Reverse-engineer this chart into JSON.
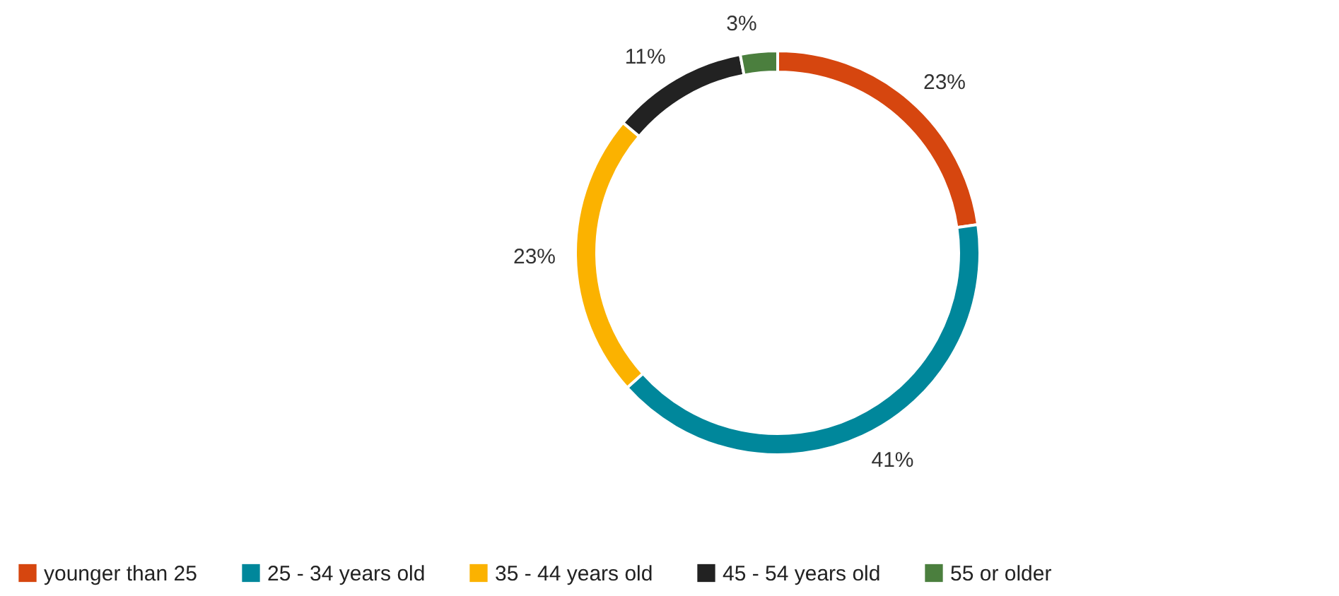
{
  "chart_data": {
    "type": "donut",
    "categories": [
      "younger than 25",
      "25 - 34 years old",
      "35 - 44 years old",
      "45 - 54 years old",
      "55 or older"
    ],
    "values": [
      23,
      41,
      23,
      11,
      3
    ],
    "value_labels": [
      "23%",
      "41%",
      "23%",
      "11%",
      "3%"
    ],
    "colors": [
      "#d6460f",
      "#00879b",
      "#fbb200",
      "#222222",
      "#4b7f3e"
    ],
    "legend": "bottom"
  }
}
